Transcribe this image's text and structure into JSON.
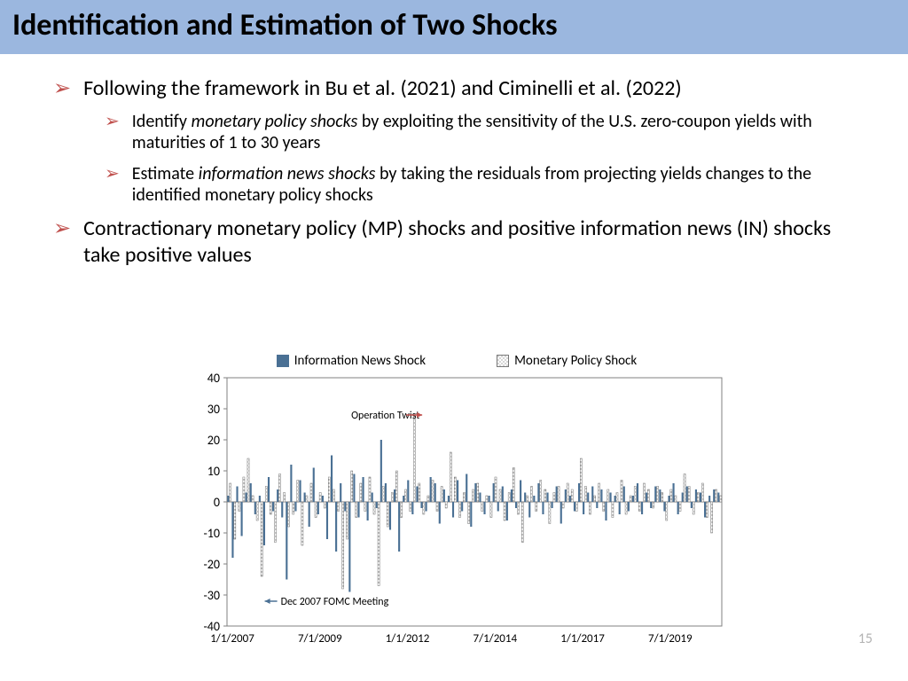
{
  "title": "Identification and Estimation of Two Shocks",
  "bullets": {
    "b1": "Following the framework in Bu et al. (2021) and Ciminelli et al. (2022)",
    "b1a_pre": "Identify ",
    "b1a_it": "monetary policy shocks",
    "b1a_post": " by exploiting the sensitivity of the U.S. zero-coupon yields with maturities of 1 to 30 years",
    "b1b_pre": "Estimate ",
    "b1b_it": "information news shocks",
    "b1b_post": " by taking the residuals from projecting yields changes to the identified monetary policy shocks",
    "b2": "Contractionary monetary policy (MP) shocks and positive information news (IN) shocks take positive values"
  },
  "page_number": "15",
  "legend": {
    "in": "Information News Shock",
    "mp": "Monetary Policy Shock"
  },
  "chart": {
    "type": "bar",
    "annotations": {
      "ot": "Operation Twist",
      "fomc": "Dec 2007 FOMC Meeting"
    },
    "colors": {
      "in_fill": "#4a7094",
      "mp_fill_pattern_bg": "#ffffff",
      "mp_stroke": "#777777",
      "axis": "#808080",
      "border": "#808080",
      "arrow": "#c0504d",
      "annot_text": "#000000",
      "background": "#ffffff"
    },
    "ylim": [
      -40,
      40
    ],
    "ytick_step": 10,
    "yticks": [
      -40,
      -30,
      -20,
      -10,
      0,
      10,
      20,
      30,
      40
    ],
    "xticks": [
      "1/1/2007",
      "7/1/2009",
      "1/1/2012",
      "7/1/2014",
      "1/1/2017",
      "7/1/2019"
    ],
    "n_periods": 110,
    "ot_index": 41,
    "fomc_index": 8,
    "series_in": [
      2,
      -18,
      5,
      -11,
      3,
      6,
      -4,
      2,
      -14,
      8,
      -3,
      4,
      -5,
      -25,
      12,
      -3,
      7,
      3,
      -8,
      11,
      -4,
      2,
      -12,
      15,
      -16,
      6,
      -3,
      -29,
      9,
      -5,
      8,
      -6,
      3,
      -2,
      20,
      6,
      -9,
      4,
      -16,
      2,
      7,
      -4,
      5,
      -2,
      -3,
      8,
      6,
      -7,
      4,
      2,
      -5,
      7,
      -3,
      9,
      -8,
      6,
      3,
      -4,
      2,
      6,
      -3,
      5,
      -6,
      4,
      -2,
      7,
      3,
      -5,
      2,
      6,
      -4,
      3,
      -2,
      5,
      -7,
      4,
      2,
      -3,
      6,
      -4,
      3,
      5,
      -2,
      4,
      -6,
      3,
      2,
      -4,
      5,
      -3,
      2,
      6,
      -4,
      3,
      -2,
      5,
      4,
      -3,
      2,
      6,
      -4,
      3,
      5,
      -2,
      4,
      3,
      -5,
      2,
      4,
      3
    ],
    "series_mp": [
      6,
      -12,
      -3,
      8,
      14,
      2,
      -6,
      -24,
      5,
      -4,
      -13,
      9,
      3,
      -8,
      -4,
      7,
      -14,
      2,
      6,
      -5,
      3,
      -2,
      8,
      4,
      -3,
      -28,
      -12,
      10,
      -5,
      6,
      -3,
      8,
      -4,
      -27,
      5,
      -8,
      3,
      10,
      -5,
      4,
      -3,
      28,
      6,
      -4,
      2,
      7,
      -3,
      5,
      -2,
      16,
      8,
      -5,
      3,
      -7,
      4,
      6,
      -3,
      2,
      -5,
      8,
      4,
      -6,
      3,
      11,
      -4,
      -13,
      2,
      5,
      -3,
      7,
      4,
      -7,
      3,
      5,
      -2,
      6,
      4,
      -3,
      14,
      5,
      -4,
      2,
      6,
      -3,
      4,
      -5,
      3,
      7,
      -4,
      2,
      5,
      -3,
      6,
      4,
      -2,
      5,
      3,
      -6,
      4,
      2,
      -3,
      9,
      5,
      -4,
      3,
      6,
      -5,
      -10,
      4,
      2
    ]
  }
}
